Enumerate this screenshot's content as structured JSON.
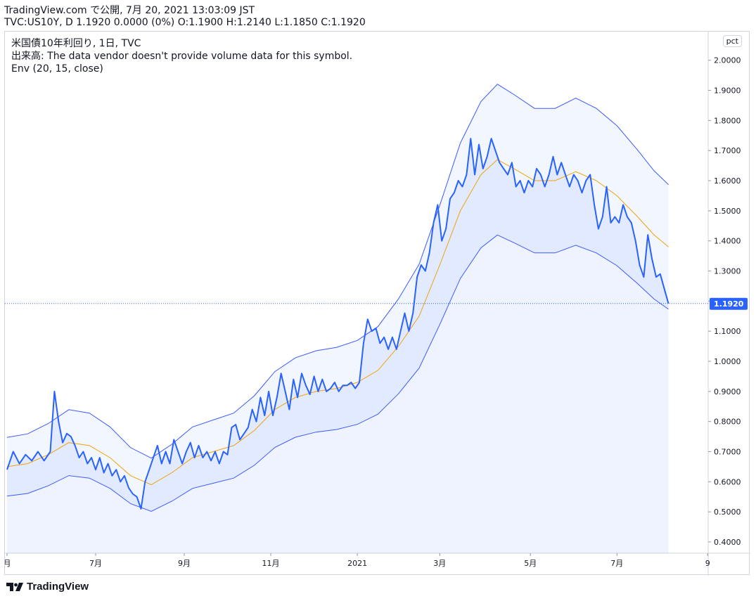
{
  "header": {
    "line1": "TradingView.com で公開, 7月 20, 2021 13:03:09 JST",
    "line2": "TVC:US10Y, D 1.1920 0.0000 (0%) O:1.1900 H:1.2140 L:1.1850 C:1.1920"
  },
  "legend": {
    "symbol": "米国債10年利回り, 1日, TVC",
    "volume": "出来高: The data vendor doesn't provide volume data for this symbol.",
    "indicator": "Env (20, 15, close)"
  },
  "unit_button": "pct",
  "brand": "TradingView",
  "colors": {
    "price": "#2962ff",
    "envelope": "#3d5afe",
    "basis": "#f0a30a",
    "fill": "#2962ff",
    "last_price_tag": "#2962ff"
  },
  "chart_data": {
    "type": "line",
    "ylim": [
      0.38,
      2.06
    ],
    "yticks": [
      "0.4000",
      "0.5000",
      "0.6000",
      "0.7000",
      "0.8000",
      "0.9000",
      "1.0000",
      "1.1000",
      "1.2000",
      "1.3000",
      "1.4000",
      "1.5000",
      "1.6000",
      "1.7000",
      "1.8000",
      "1.9000",
      "2.0000"
    ],
    "xticks": [
      {
        "label": "月",
        "t": 0
      },
      {
        "label": "7月",
        "t": 43
      },
      {
        "label": "9月",
        "t": 86
      },
      {
        "label": "11月",
        "t": 128
      },
      {
        "label": "2021",
        "t": 170
      },
      {
        "label": "3月",
        "t": 210
      },
      {
        "label": "5月",
        "t": 254
      },
      {
        "label": "7月",
        "t": 296
      },
      {
        "label": "9",
        "t": 340
      }
    ],
    "last_price": "1.1920",
    "last_price_value": 1.192,
    "price_series": [
      [
        0,
        0.64
      ],
      [
        3,
        0.7
      ],
      [
        6,
        0.66
      ],
      [
        9,
        0.69
      ],
      [
        12,
        0.67
      ],
      [
        15,
        0.7
      ],
      [
        18,
        0.67
      ],
      [
        21,
        0.7
      ],
      [
        23,
        0.9
      ],
      [
        25,
        0.8
      ],
      [
        27,
        0.73
      ],
      [
        29,
        0.76
      ],
      [
        31,
        0.75
      ],
      [
        33,
        0.72
      ],
      [
        35,
        0.68
      ],
      [
        37,
        0.7
      ],
      [
        39,
        0.66
      ],
      [
        41,
        0.68
      ],
      [
        43,
        0.64
      ],
      [
        45,
        0.68
      ],
      [
        47,
        0.63
      ],
      [
        49,
        0.66
      ],
      [
        51,
        0.62
      ],
      [
        53,
        0.64
      ],
      [
        55,
        0.6
      ],
      [
        57,
        0.62
      ],
      [
        59,
        0.58
      ],
      [
        61,
        0.56
      ],
      [
        63,
        0.55
      ],
      [
        65,
        0.51
      ],
      [
        67,
        0.6
      ],
      [
        69,
        0.64
      ],
      [
        71,
        0.68
      ],
      [
        73,
        0.72
      ],
      [
        75,
        0.66
      ],
      [
        77,
        0.7
      ],
      [
        79,
        0.66
      ],
      [
        81,
        0.74
      ],
      [
        83,
        0.7
      ],
      [
        85,
        0.66
      ],
      [
        87,
        0.7
      ],
      [
        89,
        0.73
      ],
      [
        91,
        0.68
      ],
      [
        93,
        0.72
      ],
      [
        95,
        0.68
      ],
      [
        97,
        0.7
      ],
      [
        99,
        0.67
      ],
      [
        101,
        0.7
      ],
      [
        103,
        0.66
      ],
      [
        105,
        0.7
      ],
      [
        107,
        0.69
      ],
      [
        109,
        0.78
      ],
      [
        111,
        0.79
      ],
      [
        113,
        0.74
      ],
      [
        115,
        0.76
      ],
      [
        117,
        0.78
      ],
      [
        119,
        0.84
      ],
      [
        121,
        0.8
      ],
      [
        123,
        0.88
      ],
      [
        125,
        0.82
      ],
      [
        127,
        0.9
      ],
      [
        129,
        0.82
      ],
      [
        131,
        0.88
      ],
      [
        133,
        0.96
      ],
      [
        135,
        0.9
      ],
      [
        137,
        0.84
      ],
      [
        139,
        0.94
      ],
      [
        141,
        0.88
      ],
      [
        143,
        0.96
      ],
      [
        145,
        0.92
      ],
      [
        147,
        0.89
      ],
      [
        149,
        0.95
      ],
      [
        151,
        0.9
      ],
      [
        153,
        0.94
      ],
      [
        155,
        0.9
      ],
      [
        157,
        0.91
      ],
      [
        159,
        0.93
      ],
      [
        161,
        0.9
      ],
      [
        163,
        0.92
      ],
      [
        165,
        0.92
      ],
      [
        167,
        0.93
      ],
      [
        169,
        0.91
      ],
      [
        171,
        0.93
      ],
      [
        173,
        1.06
      ],
      [
        175,
        1.14
      ],
      [
        177,
        1.1
      ],
      [
        179,
        1.11
      ],
      [
        181,
        1.06
      ],
      [
        183,
        1.08
      ],
      [
        185,
        1.04
      ],
      [
        187,
        1.08
      ],
      [
        189,
        1.04
      ],
      [
        191,
        1.1
      ],
      [
        193,
        1.16
      ],
      [
        195,
        1.1
      ],
      [
        197,
        1.16
      ],
      [
        199,
        1.28
      ],
      [
        201,
        1.32
      ],
      [
        203,
        1.3
      ],
      [
        205,
        1.36
      ],
      [
        207,
        1.46
      ],
      [
        209,
        1.52
      ],
      [
        211,
        1.4
      ],
      [
        213,
        1.44
      ],
      [
        215,
        1.54
      ],
      [
        217,
        1.56
      ],
      [
        219,
        1.6
      ],
      [
        221,
        1.58
      ],
      [
        223,
        1.62
      ],
      [
        225,
        1.74
      ],
      [
        227,
        1.62
      ],
      [
        229,
        1.72
      ],
      [
        231,
        1.64
      ],
      [
        233,
        1.68
      ],
      [
        235,
        1.74
      ],
      [
        237,
        1.7
      ],
      [
        239,
        1.66
      ],
      [
        241,
        1.64
      ],
      [
        243,
        1.62
      ],
      [
        245,
        1.66
      ],
      [
        247,
        1.58
      ],
      [
        249,
        1.6
      ],
      [
        251,
        1.56
      ],
      [
        253,
        1.6
      ],
      [
        255,
        1.58
      ],
      [
        257,
        1.64
      ],
      [
        259,
        1.62
      ],
      [
        261,
        1.58
      ],
      [
        263,
        1.62
      ],
      [
        265,
        1.68
      ],
      [
        267,
        1.62
      ],
      [
        269,
        1.66
      ],
      [
        271,
        1.62
      ],
      [
        273,
        1.58
      ],
      [
        275,
        1.62
      ],
      [
        277,
        1.6
      ],
      [
        279,
        1.56
      ],
      [
        281,
        1.6
      ],
      [
        283,
        1.62
      ],
      [
        285,
        1.52
      ],
      [
        287,
        1.44
      ],
      [
        289,
        1.48
      ],
      [
        291,
        1.58
      ],
      [
        293,
        1.46
      ],
      [
        295,
        1.48
      ],
      [
        297,
        1.46
      ],
      [
        299,
        1.52
      ],
      [
        301,
        1.48
      ],
      [
        303,
        1.46
      ],
      [
        305,
        1.4
      ],
      [
        307,
        1.32
      ],
      [
        309,
        1.28
      ],
      [
        311,
        1.42
      ],
      [
        313,
        1.34
      ],
      [
        315,
        1.28
      ],
      [
        317,
        1.29
      ],
      [
        319,
        1.24
      ],
      [
        321,
        1.192
      ]
    ],
    "basis_series": [
      [
        0,
        0.65
      ],
      [
        10,
        0.66
      ],
      [
        20,
        0.69
      ],
      [
        30,
        0.73
      ],
      [
        40,
        0.72
      ],
      [
        50,
        0.68
      ],
      [
        60,
        0.62
      ],
      [
        70,
        0.59
      ],
      [
        80,
        0.63
      ],
      [
        90,
        0.68
      ],
      [
        100,
        0.7
      ],
      [
        110,
        0.72
      ],
      [
        120,
        0.77
      ],
      [
        130,
        0.84
      ],
      [
        140,
        0.88
      ],
      [
        150,
        0.9
      ],
      [
        160,
        0.91
      ],
      [
        170,
        0.93
      ],
      [
        180,
        0.97
      ],
      [
        190,
        1.05
      ],
      [
        200,
        1.15
      ],
      [
        210,
        1.32
      ],
      [
        220,
        1.5
      ],
      [
        230,
        1.62
      ],
      [
        238,
        1.67
      ],
      [
        246,
        1.64
      ],
      [
        256,
        1.6
      ],
      [
        266,
        1.6
      ],
      [
        276,
        1.63
      ],
      [
        286,
        1.6
      ],
      [
        296,
        1.55
      ],
      [
        306,
        1.48
      ],
      [
        314,
        1.42
      ],
      [
        321,
        1.38
      ]
    ],
    "envelope_pct": 15
  }
}
